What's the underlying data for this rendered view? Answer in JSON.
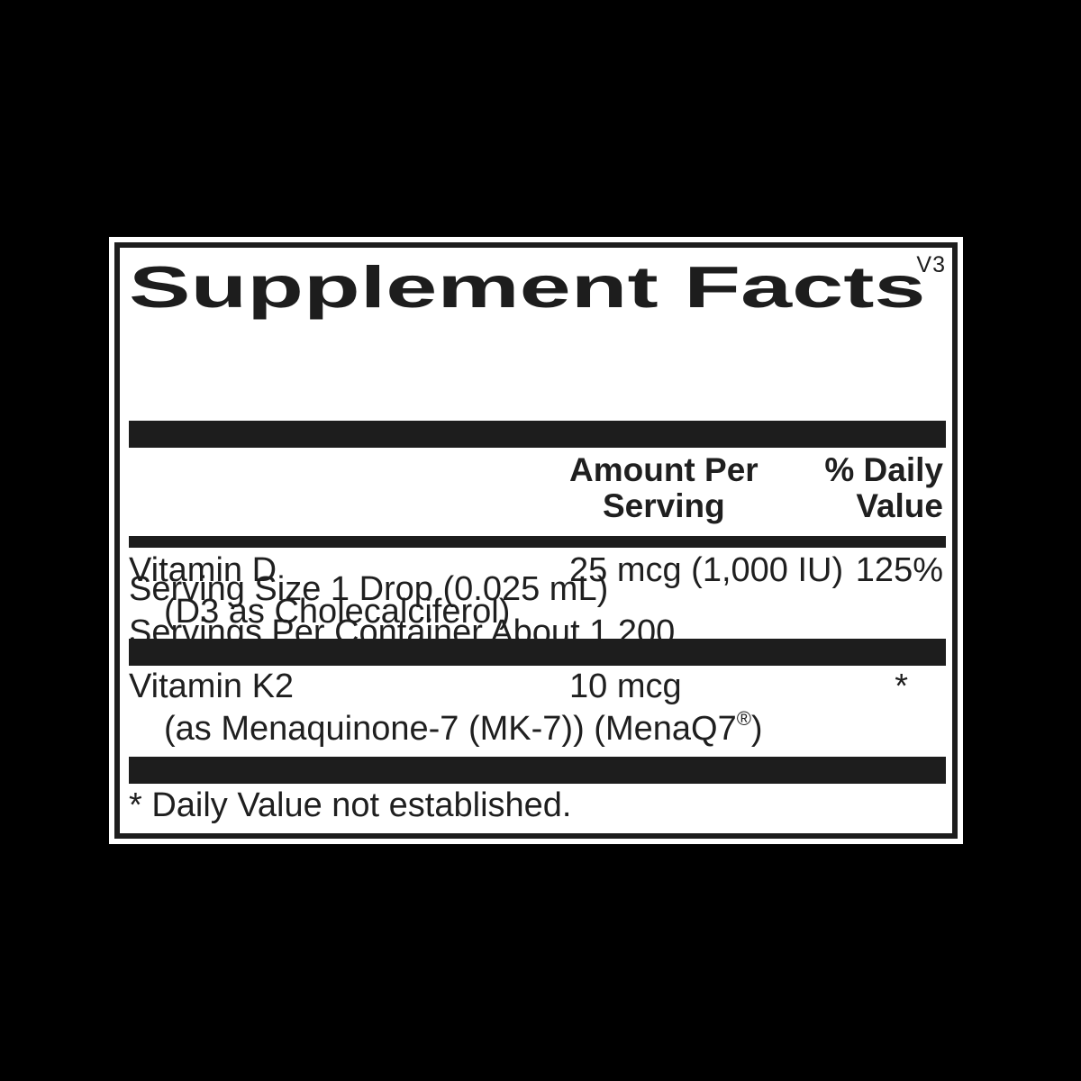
{
  "label": {
    "title": "Supplement Facts",
    "version": "V3",
    "serving_size": "Serving Size 1 Drop (0.025 mL)",
    "servings_per_container": "Servings Per Container About 1,200",
    "columns": {
      "amount_header_line1": "Amount Per",
      "amount_header_line2": "Serving",
      "dv_header_line1": "% Daily",
      "dv_header_line2": "Value"
    },
    "rows": [
      {
        "name": "Vitamin D",
        "detail": "(D3 as Cholecalciferol)",
        "amount": "25 mcg (1,000 IU)",
        "daily_value": "125%"
      },
      {
        "name": "Vitamin K2",
        "detail_prefix": "(as Menaquinone-7 (MK-7)) (MenaQ7",
        "detail_reg": "®",
        "detail_suffix": ")",
        "amount": "10 mcg",
        "daily_value": "*"
      }
    ],
    "footnote": "* Daily Value not established."
  },
  "colors": {
    "page_background": "#000000",
    "panel_background": "#ffffff",
    "ink": "#1d1d1d"
  }
}
